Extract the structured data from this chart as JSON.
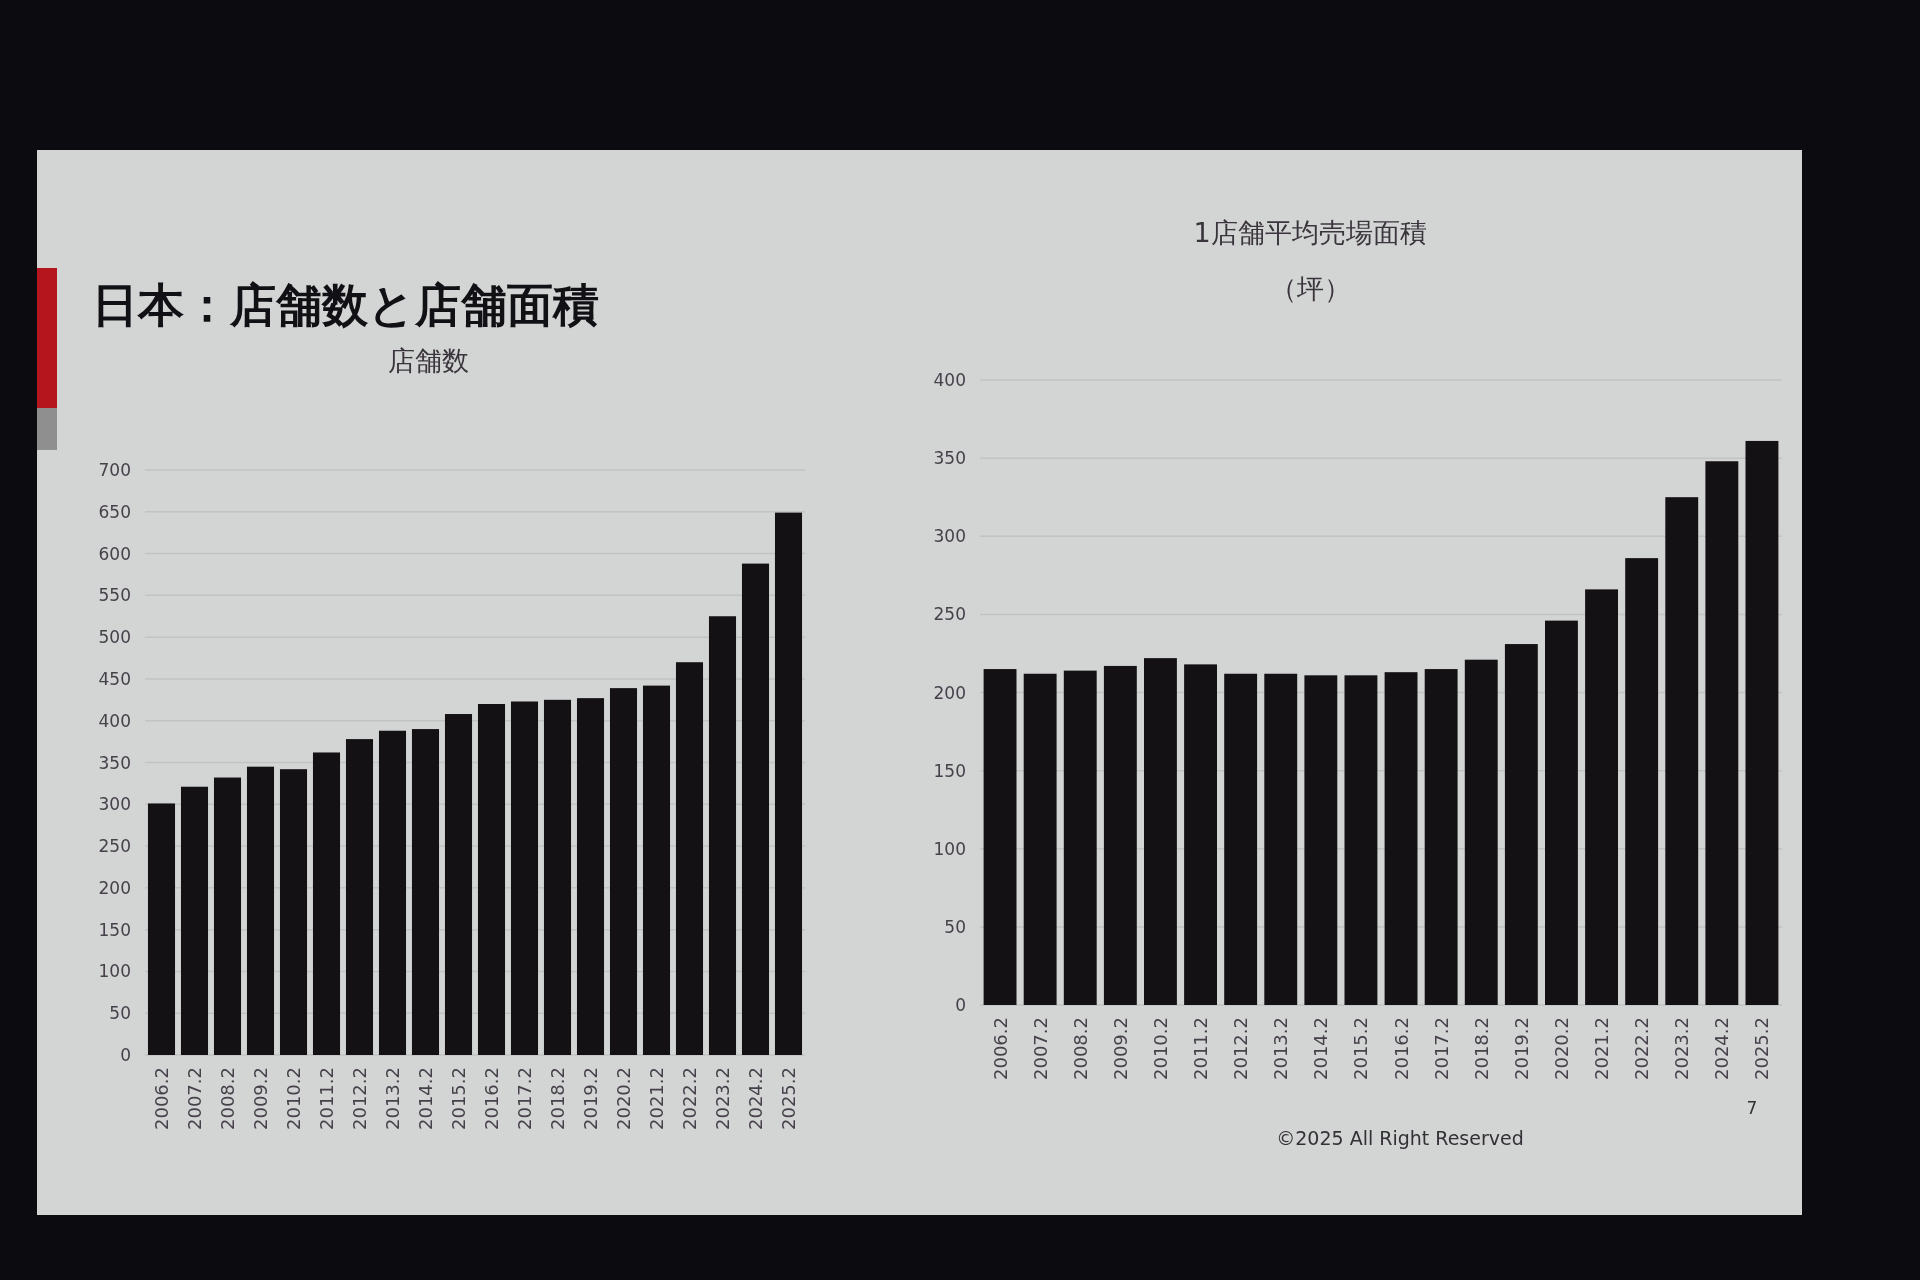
{
  "chart_data": [
    {
      "type": "other",
      "title": "日本：店舗数と店舗面積",
      "annotations": [
        "©2025 All Right Reserved",
        "7"
      ]
    },
    {
      "type": "bar",
      "title": "店舗数",
      "categories": [
        "2006.2",
        "2007.2",
        "2008.2",
        "2009.2",
        "2010.2",
        "2011.2",
        "2012.2",
        "2013.2",
        "2014.2",
        "2015.2",
        "2016.2",
        "2017.2",
        "2018.2",
        "2019.2",
        "2020.2",
        "2021.2",
        "2022.2",
        "2023.2",
        "2024.2",
        "2025.2"
      ],
      "values": [
        301,
        321,
        332,
        345,
        342,
        362,
        378,
        388,
        390,
        408,
        420,
        423,
        425,
        427,
        439,
        442,
        470,
        525,
        588,
        649
      ],
      "color": "#141114",
      "ylim": [
        0,
        700
      ],
      "yticks": [
        0,
        50,
        100,
        150,
        200,
        250,
        300,
        350,
        400,
        450,
        500,
        550,
        600,
        650,
        700
      ],
      "grid": "y"
    },
    {
      "type": "bar",
      "title": "1店舗平均売場面積",
      "subtitle": "（坪）",
      "categories": [
        "2006.2",
        "2007.2",
        "2008.2",
        "2009.2",
        "2010.2",
        "2011.2",
        "2012.2",
        "2013.2",
        "2014.2",
        "2015.2",
        "2016.2",
        "2017.2",
        "2018.2",
        "2019.2",
        "2020.2",
        "2021.2",
        "2022.2",
        "2023.2",
        "2024.2",
        "2025.2"
      ],
      "values": [
        215,
        212,
        214,
        217,
        222,
        218,
        212,
        212,
        211,
        211,
        213,
        215,
        221,
        231,
        246,
        266,
        286,
        325,
        348,
        361
      ],
      "color": "#141114",
      "ylim": [
        0,
        400
      ],
      "yticks": [
        0,
        50,
        100,
        150,
        200,
        250,
        300,
        350,
        400
      ],
      "grid": "y"
    }
  ]
}
